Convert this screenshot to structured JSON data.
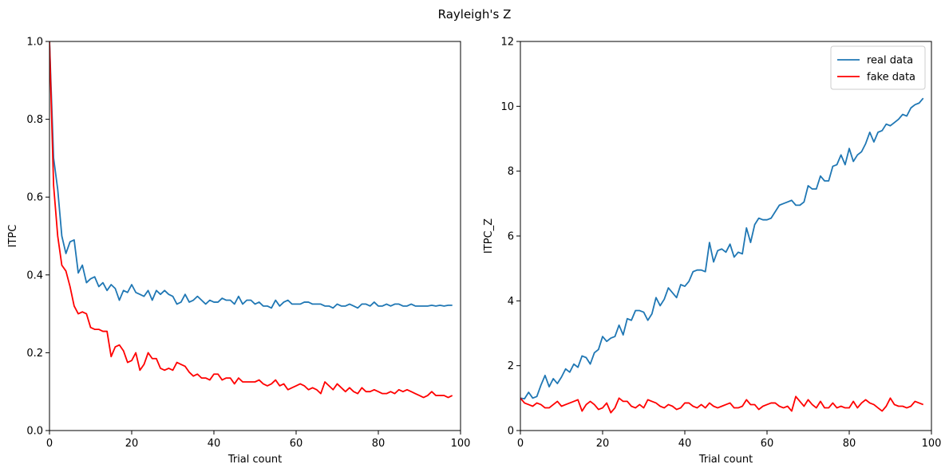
{
  "figure": {
    "suptitle": "Rayleigh's Z"
  },
  "chart_data": [
    {
      "type": "line",
      "title": "",
      "xlabel": "Trial count",
      "ylabel": "ITPC",
      "xlim": [
        0,
        100
      ],
      "ylim": [
        0,
        1.0
      ],
      "xticks": [
        0,
        20,
        40,
        60,
        80,
        100
      ],
      "xtick_labels": [
        "0",
        "20",
        "40",
        "60",
        "80",
        "100"
      ],
      "yticks": [
        0.0,
        0.2,
        0.4,
        0.6,
        0.8,
        1.0
      ],
      "ytick_labels": [
        "0.0",
        "0.2",
        "0.4",
        "0.6",
        "0.8",
        "1.0"
      ],
      "grid": false,
      "legend": null,
      "series": [
        {
          "color": "#1f77b4",
          "x": [
            0,
            1,
            2,
            3,
            4,
            5,
            6,
            7,
            8,
            9,
            10,
            11,
            12,
            13,
            14,
            15,
            16,
            17,
            18,
            19,
            20,
            21,
            22,
            23,
            24,
            25,
            26,
            27,
            28,
            29,
            30,
            31,
            32,
            33,
            34,
            35,
            36,
            37,
            38,
            39,
            40,
            41,
            42,
            43,
            44,
            45,
            46,
            47,
            48,
            49,
            50,
            51,
            52,
            53,
            54,
            55,
            56,
            57,
            58,
            59,
            60,
            61,
            62,
            63,
            64,
            65,
            66,
            67,
            68,
            69,
            70,
            71,
            72,
            73,
            74,
            75,
            76,
            77,
            78,
            79,
            80,
            81,
            82,
            83,
            84,
            85,
            86,
            87,
            88,
            89,
            90,
            91,
            92,
            93,
            94,
            95,
            96,
            97,
            98
          ],
          "values": [
            1.0,
            0.7,
            0.62,
            0.5,
            0.455,
            0.485,
            0.49,
            0.405,
            0.425,
            0.38,
            0.39,
            0.395,
            0.37,
            0.38,
            0.36,
            0.375,
            0.365,
            0.335,
            0.36,
            0.355,
            0.375,
            0.355,
            0.35,
            0.345,
            0.36,
            0.335,
            0.36,
            0.35,
            0.36,
            0.35,
            0.345,
            0.325,
            0.33,
            0.35,
            0.33,
            0.335,
            0.345,
            0.335,
            0.325,
            0.335,
            0.33,
            0.33,
            0.34,
            0.335,
            0.335,
            0.325,
            0.345,
            0.325,
            0.335,
            0.335,
            0.325,
            0.33,
            0.32,
            0.32,
            0.315,
            0.335,
            0.32,
            0.33,
            0.335,
            0.325,
            0.325,
            0.325,
            0.33,
            0.33,
            0.325,
            0.325,
            0.325,
            0.32,
            0.32,
            0.315,
            0.325,
            0.32,
            0.32,
            0.325,
            0.32,
            0.315,
            0.325,
            0.325,
            0.32,
            0.33,
            0.32,
            0.32,
            0.325,
            0.32,
            0.325,
            0.325,
            0.32,
            0.32,
            0.325,
            0.32,
            0.32,
            0.32,
            0.32,
            0.322,
            0.32,
            0.322,
            0.32,
            0.322,
            0.322
          ]
        },
        {
          "color": "#ff0000",
          "x": [
            0,
            1,
            2,
            3,
            4,
            5,
            6,
            7,
            8,
            9,
            10,
            11,
            12,
            13,
            14,
            15,
            16,
            17,
            18,
            19,
            20,
            21,
            22,
            23,
            24,
            25,
            26,
            27,
            28,
            29,
            30,
            31,
            32,
            33,
            34,
            35,
            36,
            37,
            38,
            39,
            40,
            41,
            42,
            43,
            44,
            45,
            46,
            47,
            48,
            49,
            50,
            51,
            52,
            53,
            54,
            55,
            56,
            57,
            58,
            59,
            60,
            61,
            62,
            63,
            64,
            65,
            66,
            67,
            68,
            69,
            70,
            71,
            72,
            73,
            74,
            75,
            76,
            77,
            78,
            79,
            80,
            81,
            82,
            83,
            84,
            85,
            86,
            87,
            88,
            89,
            90,
            91,
            92,
            93,
            94,
            95,
            96,
            97,
            98
          ],
          "values": [
            1.0,
            0.63,
            0.5,
            0.425,
            0.41,
            0.37,
            0.32,
            0.3,
            0.305,
            0.3,
            0.265,
            0.26,
            0.26,
            0.255,
            0.255,
            0.19,
            0.215,
            0.22,
            0.205,
            0.175,
            0.18,
            0.2,
            0.155,
            0.17,
            0.2,
            0.185,
            0.185,
            0.16,
            0.155,
            0.16,
            0.155,
            0.175,
            0.17,
            0.165,
            0.15,
            0.14,
            0.145,
            0.135,
            0.135,
            0.13,
            0.145,
            0.145,
            0.13,
            0.135,
            0.135,
            0.12,
            0.135,
            0.125,
            0.125,
            0.125,
            0.125,
            0.13,
            0.12,
            0.115,
            0.12,
            0.13,
            0.115,
            0.12,
            0.105,
            0.11,
            0.115,
            0.12,
            0.115,
            0.105,
            0.11,
            0.105,
            0.095,
            0.125,
            0.115,
            0.105,
            0.12,
            0.11,
            0.1,
            0.11,
            0.1,
            0.095,
            0.11,
            0.1,
            0.1,
            0.105,
            0.1,
            0.095,
            0.095,
            0.1,
            0.095,
            0.105,
            0.1,
            0.105,
            0.1,
            0.095,
            0.09,
            0.085,
            0.09,
            0.1,
            0.09,
            0.09,
            0.09,
            0.085,
            0.09
          ]
        }
      ]
    },
    {
      "type": "line",
      "title": "",
      "xlabel": "Trial count",
      "ylabel": "ITPC_Z",
      "xlim": [
        0,
        100
      ],
      "ylim": [
        0,
        12
      ],
      "xticks": [
        0,
        20,
        40,
        60,
        80,
        100
      ],
      "xtick_labels": [
        "0",
        "20",
        "40",
        "60",
        "80",
        "100"
      ],
      "yticks": [
        0,
        2,
        4,
        6,
        8,
        10,
        12
      ],
      "ytick_labels": [
        "0",
        "2",
        "4",
        "6",
        "8",
        "10",
        "12"
      ],
      "grid": false,
      "legend": "top-right",
      "series": [
        {
          "name": "real data",
          "color": "#1f77b4",
          "x": [
            0,
            1,
            2,
            3,
            4,
            5,
            6,
            7,
            8,
            9,
            10,
            11,
            12,
            13,
            14,
            15,
            16,
            17,
            18,
            19,
            20,
            21,
            22,
            23,
            24,
            25,
            26,
            27,
            28,
            29,
            30,
            31,
            32,
            33,
            34,
            35,
            36,
            37,
            38,
            39,
            40,
            41,
            42,
            43,
            44,
            45,
            46,
            47,
            48,
            49,
            50,
            51,
            52,
            53,
            54,
            55,
            56,
            57,
            58,
            59,
            60,
            61,
            62,
            63,
            64,
            65,
            66,
            67,
            68,
            69,
            70,
            71,
            72,
            73,
            74,
            75,
            76,
            77,
            78,
            79,
            80,
            81,
            82,
            83,
            84,
            85,
            86,
            87,
            88,
            89,
            90,
            91,
            92,
            93,
            94,
            95,
            96,
            97,
            98
          ],
          "values": [
            1.0,
            0.98,
            1.18,
            1.0,
            1.05,
            1.4,
            1.7,
            1.35,
            1.6,
            1.45,
            1.65,
            1.9,
            1.8,
            2.05,
            1.95,
            2.3,
            2.25,
            2.05,
            2.4,
            2.5,
            2.9,
            2.75,
            2.85,
            2.9,
            3.25,
            2.95,
            3.45,
            3.4,
            3.7,
            3.7,
            3.65,
            3.4,
            3.6,
            4.1,
            3.85,
            4.05,
            4.4,
            4.25,
            4.1,
            4.5,
            4.45,
            4.6,
            4.9,
            4.95,
            4.95,
            4.9,
            5.8,
            5.2,
            5.55,
            5.6,
            5.5,
            5.75,
            5.35,
            5.5,
            5.45,
            6.25,
            5.8,
            6.35,
            6.55,
            6.5,
            6.5,
            6.55,
            6.75,
            6.95,
            7.0,
            7.05,
            7.1,
            6.95,
            6.95,
            7.05,
            7.55,
            7.45,
            7.45,
            7.85,
            7.7,
            7.7,
            8.15,
            8.2,
            8.5,
            8.2,
            8.7,
            8.3,
            8.5,
            8.6,
            8.85,
            9.2,
            8.9,
            9.2,
            9.25,
            9.45,
            9.4,
            9.5,
            9.6,
            9.75,
            9.7,
            9.95,
            10.05,
            10.1,
            10.25
          ]
        },
        {
          "name": "fake data",
          "color": "#ff0000",
          "x": [
            0,
            1,
            2,
            3,
            4,
            5,
            6,
            7,
            8,
            9,
            10,
            11,
            12,
            13,
            14,
            15,
            16,
            17,
            18,
            19,
            20,
            21,
            22,
            23,
            24,
            25,
            26,
            27,
            28,
            29,
            30,
            31,
            32,
            33,
            34,
            35,
            36,
            37,
            38,
            39,
            40,
            41,
            42,
            43,
            44,
            45,
            46,
            47,
            48,
            49,
            50,
            51,
            52,
            53,
            54,
            55,
            56,
            57,
            58,
            59,
            60,
            61,
            62,
            63,
            64,
            65,
            66,
            67,
            68,
            69,
            70,
            71,
            72,
            73,
            74,
            75,
            76,
            77,
            78,
            79,
            80,
            81,
            82,
            83,
            84,
            85,
            86,
            87,
            88,
            89,
            90,
            91,
            92,
            93,
            94,
            95,
            96,
            97,
            98
          ],
          "values": [
            1.0,
            0.85,
            0.8,
            0.75,
            0.85,
            0.8,
            0.7,
            0.7,
            0.8,
            0.9,
            0.75,
            0.8,
            0.85,
            0.9,
            0.95,
            0.6,
            0.8,
            0.9,
            0.8,
            0.65,
            0.7,
            0.85,
            0.55,
            0.7,
            1.0,
            0.9,
            0.9,
            0.75,
            0.7,
            0.8,
            0.7,
            0.95,
            0.9,
            0.85,
            0.75,
            0.7,
            0.8,
            0.75,
            0.65,
            0.7,
            0.85,
            0.85,
            0.75,
            0.7,
            0.8,
            0.7,
            0.85,
            0.75,
            0.7,
            0.75,
            0.8,
            0.85,
            0.7,
            0.7,
            0.75,
            0.95,
            0.8,
            0.8,
            0.65,
            0.75,
            0.8,
            0.85,
            0.85,
            0.75,
            0.7,
            0.75,
            0.6,
            1.05,
            0.9,
            0.75,
            0.95,
            0.8,
            0.7,
            0.9,
            0.7,
            0.7,
            0.85,
            0.7,
            0.75,
            0.7,
            0.7,
            0.9,
            0.7,
            0.85,
            0.95,
            0.85,
            0.8,
            0.7,
            0.6,
            0.75,
            1.0,
            0.8,
            0.75,
            0.75,
            0.7,
            0.75,
            0.9,
            0.85,
            0.8
          ]
        }
      ]
    }
  ]
}
